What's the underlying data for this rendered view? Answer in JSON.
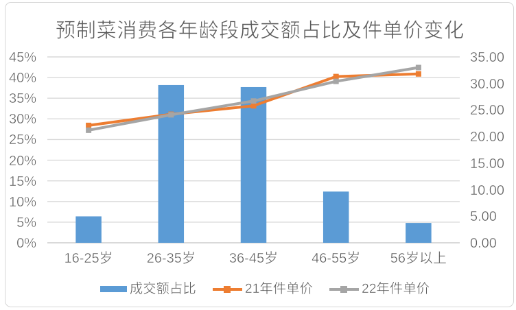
{
  "chart_data": {
    "type": "combo-bar-line",
    "title": "预制菜消费各年龄段成交额占比及件单价变化",
    "categories": [
      "16-25岁",
      "26-35岁",
      "36-45岁",
      "46-55岁",
      "56岁以上"
    ],
    "series": [
      {
        "name": "成交额占比",
        "type": "bar",
        "axis": "left",
        "color": "#5B9BD5",
        "values": [
          6.4,
          38.2,
          37.7,
          12.4,
          4.8
        ],
        "unit": "%"
      },
      {
        "name": "21年件单价",
        "type": "line",
        "axis": "right",
        "color": "#ED7D31",
        "values": [
          22.1,
          24.2,
          25.8,
          31.3,
          31.8
        ]
      },
      {
        "name": "22年件单价",
        "type": "line",
        "axis": "right",
        "color": "#A5A5A5",
        "values": [
          21.2,
          24.1,
          26.7,
          30.4,
          33.0
        ]
      }
    ],
    "left_axis": {
      "min": 0,
      "max": 45,
      "step": 5,
      "tick_labels": [
        "0%",
        "5%",
        "10%",
        "15%",
        "20%",
        "25%",
        "30%",
        "35%",
        "40%",
        "45%"
      ]
    },
    "right_axis": {
      "min": 0,
      "max": 35,
      "step": 5,
      "tick_labels": [
        "0.00",
        "5.00",
        "10.00",
        "15.00",
        "20.00",
        "25.00",
        "30.00",
        "35.00"
      ]
    },
    "legend_position": "bottom",
    "grid": true,
    "colors": {
      "bar": "#5B9BD5",
      "line_2021": "#ED7D31",
      "line_2022": "#A5A5A5",
      "gridline": "#D9D9D9",
      "axis_line": "#D9D9D9",
      "text": "#595959",
      "border": "#D6D6D6",
      "background": "#FFFFFF"
    }
  }
}
